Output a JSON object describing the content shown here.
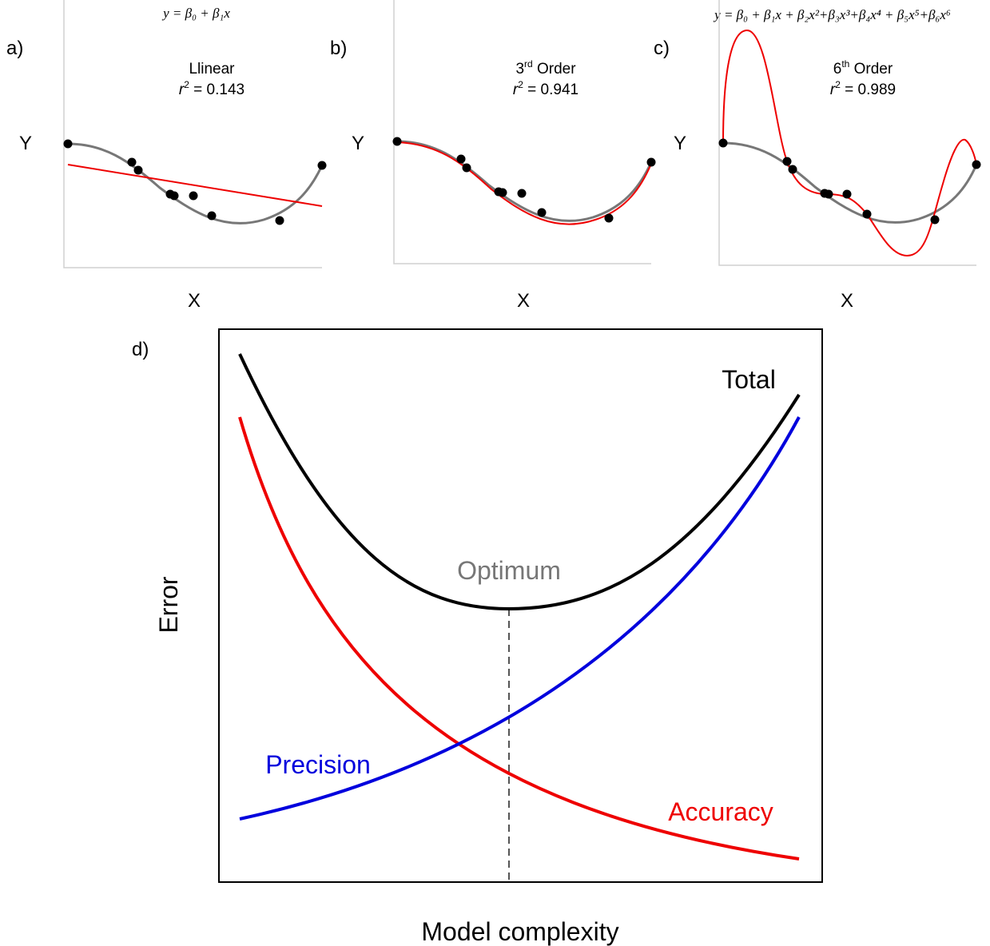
{
  "panels": [
    {
      "label": "a)",
      "equation": "y = β₀ + β₁x",
      "title": {
        "pre": "Llinear"
      },
      "fit": {
        "var": "r",
        "sup": "2",
        "post": " = 0.143"
      },
      "y_label": "Y",
      "x_label": "X"
    },
    {
      "label": "b)",
      "title": {
        "pre": "3",
        "sup": "rd",
        "post": " Order"
      },
      "fit": {
        "var": "r",
        "sup": "2",
        "post": " = 0.941"
      },
      "y_label": "Y",
      "x_label": "X"
    },
    {
      "label": "c)",
      "equation": "y = β₀ + β₁x + β₂x²+β₃x³+β₄x⁴ + β₅x⁵+β₆x⁶",
      "title": {
        "pre": "6",
        "sup": "th",
        "post": " Order"
      },
      "fit": {
        "var": "r",
        "sup": "2",
        "post": " = 0.989"
      },
      "y_label": "Y",
      "x_label": "X"
    }
  ],
  "main": {
    "label": "d)",
    "y_label": "Error",
    "x_label": "Model complexity",
    "total": "Total",
    "optimum": "Optimum",
    "precision": "Precision",
    "accuracy": "Accuracy"
  }
}
